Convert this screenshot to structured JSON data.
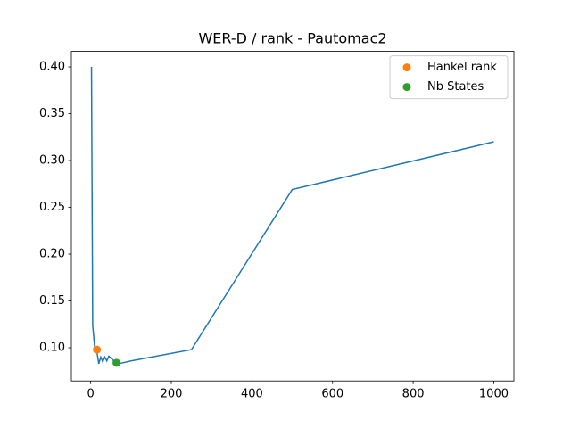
{
  "chart_data": {
    "type": "line",
    "title": "WER-D / rank - Pautomac2",
    "series": [
      {
        "mode": "line",
        "color": "#1f77b4",
        "x": [
          2,
          5,
          10,
          15,
          20,
          25,
          30,
          35,
          40,
          45,
          50,
          60,
          70,
          80,
          100,
          250,
          500,
          1000
        ],
        "values": [
          0.4,
          0.124,
          0.1,
          0.097,
          0.083,
          0.09,
          0.085,
          0.09,
          0.086,
          0.091,
          0.089,
          0.085,
          0.083,
          0.084,
          0.086,
          0.098,
          0.269,
          0.32
        ]
      },
      {
        "mode": "points",
        "name": "Hankel rank",
        "color": "#ff7f0e",
        "x": [
          15.5
        ],
        "values": [
          0.098
        ]
      },
      {
        "mode": "points",
        "name": "Nb States",
        "color": "#2ca02c",
        "x": [
          64
        ],
        "values": [
          0.084
        ]
      }
    ],
    "xlim": [
      -47.9,
      1049.9
    ],
    "xticks": [
      0,
      200,
      400,
      600,
      800,
      1000
    ],
    "ylim": [
      0.0646,
      0.4166
    ],
    "yticks": [
      {
        "value": 0.1,
        "label": "0.10"
      },
      0.15,
      {
        "value": 0.2,
        "label": "0.20"
      },
      0.25,
      {
        "value": 0.3,
        "label": "0.30"
      },
      0.35,
      {
        "value": 0.4,
        "label": "0.40"
      }
    ],
    "legend": "upper right"
  }
}
